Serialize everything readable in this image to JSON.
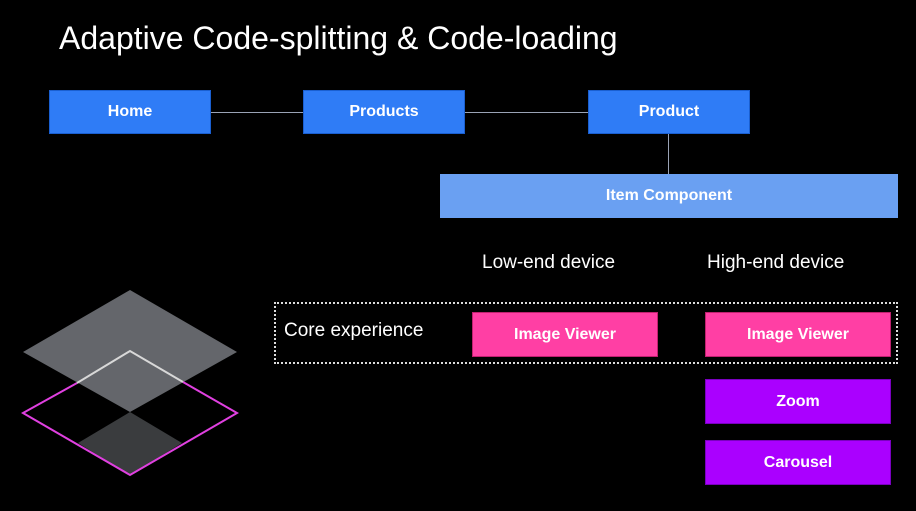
{
  "title": "Adaptive Code-splitting & Code-loading",
  "nav": {
    "home": "Home",
    "products": "Products",
    "product": "Product"
  },
  "item_component": "Item Component",
  "columns": {
    "low": "Low-end device",
    "high": "High-end device"
  },
  "core_label": "Core experience",
  "low_end": {
    "image_viewer": "Image Viewer"
  },
  "high_end": {
    "image_viewer": "Image Viewer",
    "zoom": "Zoom",
    "carousel": "Carousel"
  },
  "colors": {
    "nav": "#2f7cf6",
    "item": "#6aa0f2",
    "core": "#ff3fa4",
    "extra": "#aa00ff",
    "outline": "#e040e0"
  },
  "icon": "layers-icon"
}
